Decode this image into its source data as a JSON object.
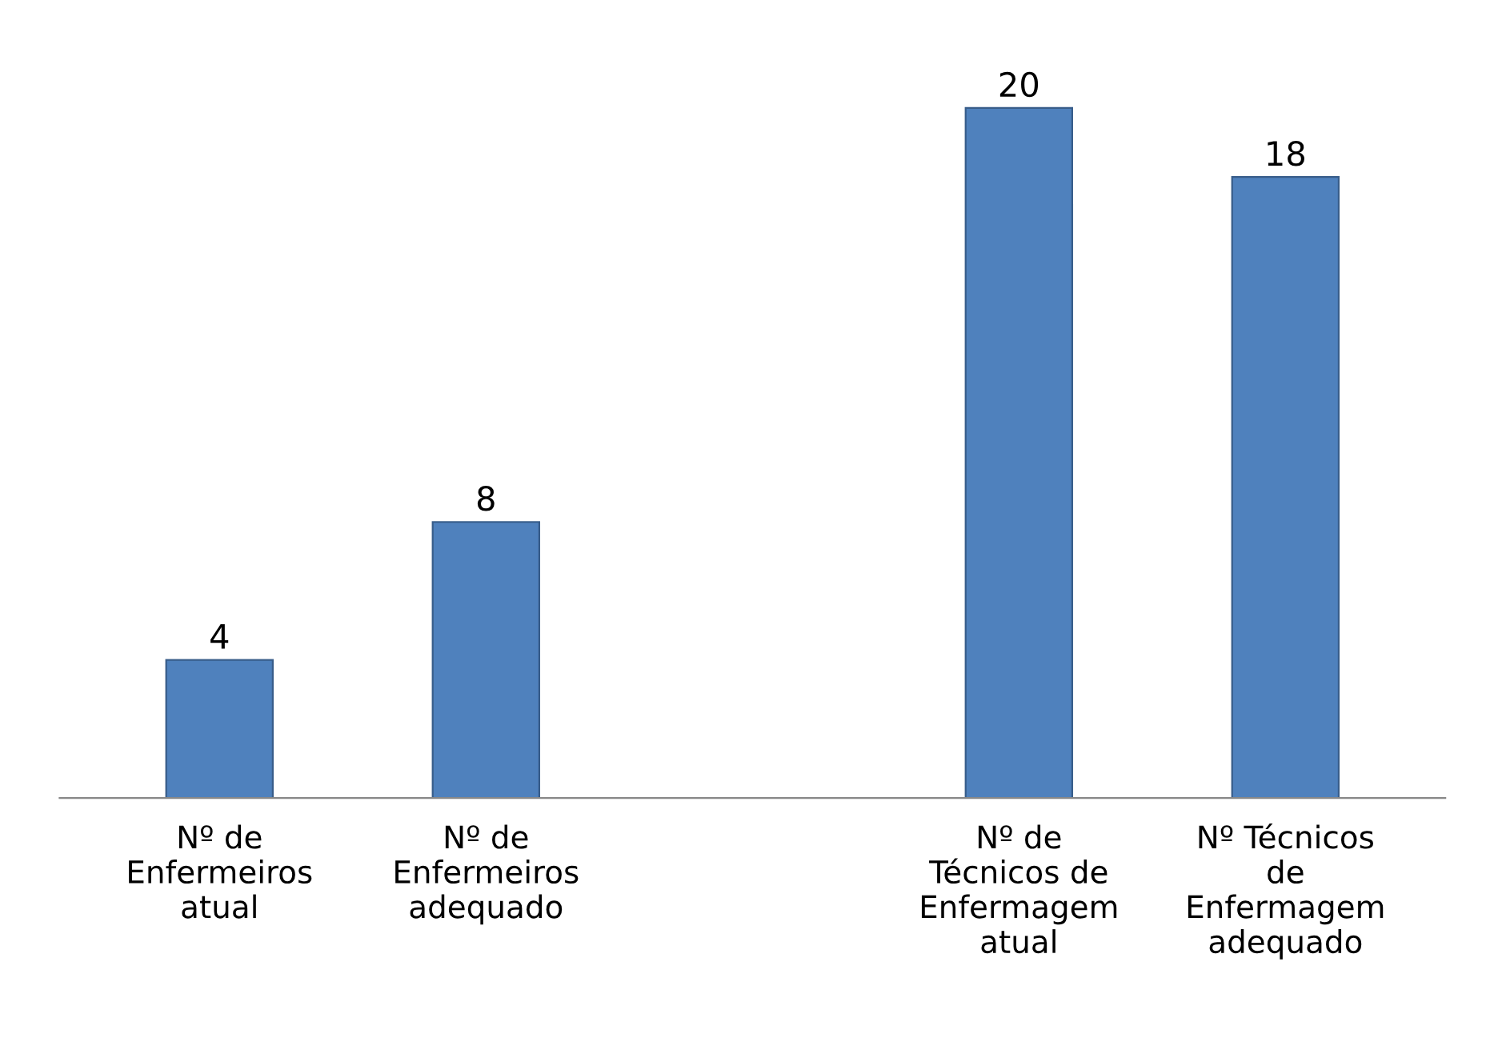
{
  "chart_data": {
    "type": "bar",
    "categories": [
      "Nº de\nEnfermeiros\natual",
      "Nº de\nEnfermeiros\nadequado",
      null,
      "Nº de\nTécnicos de\nEnfermagem\natual",
      "Nº Técnicos\nde\nEnfermagem\nadequado"
    ],
    "values": [
      4,
      8,
      null,
      20,
      18
    ],
    "color": "#4f81bd",
    "data_labels": true,
    "grid": false,
    "legend": false,
    "tick_labels": "x"
  }
}
